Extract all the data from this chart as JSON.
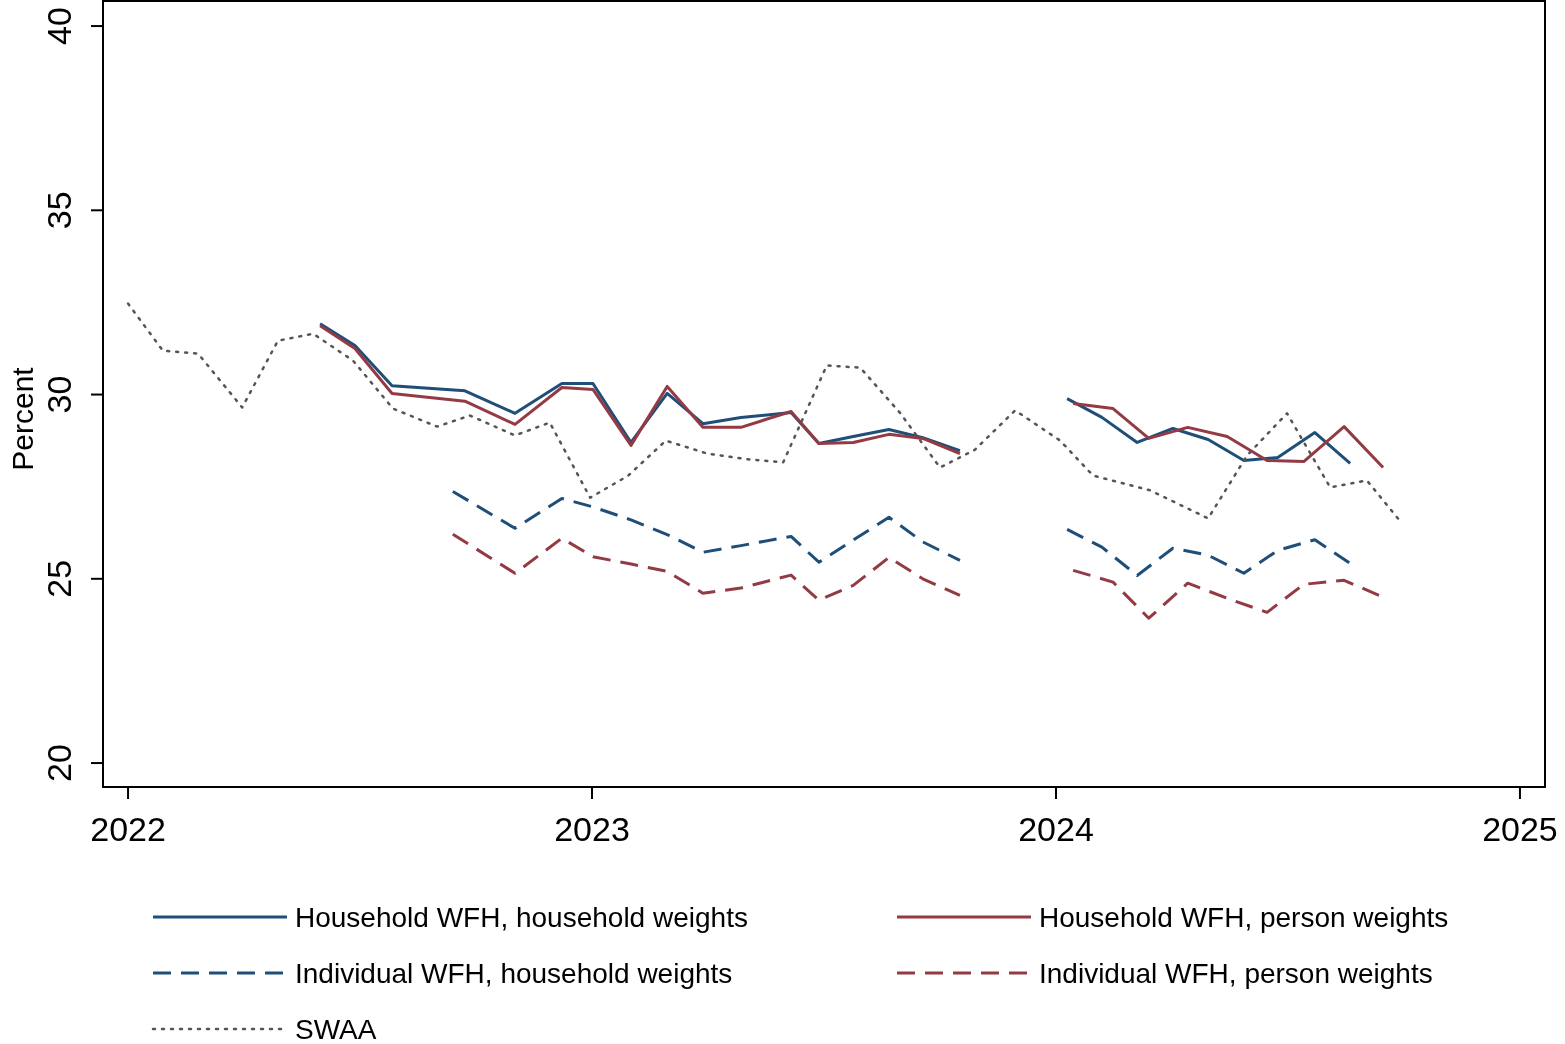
{
  "chart_data": {
    "type": "line",
    "ylabel": "Percent",
    "xlim": [
      2021.946,
      2025.054
    ],
    "ylim": [
      19.35,
      40.68
    ],
    "xticks": [
      2022,
      2023,
      2024,
      2025
    ],
    "yticks": [
      20,
      25,
      30,
      35,
      40
    ],
    "grid": false,
    "legend": "bottom",
    "series": [
      {
        "name": "Household WFH, household weights",
        "color": "#1f4e79",
        "line_style": "solid",
        "x": [
          2022.414,
          2022.489,
          2022.569,
          2022.726,
          2022.834,
          2022.935,
          2023.002,
          2023.084,
          2023.162,
          2023.239,
          2023.321,
          2023.429,
          2023.489,
          2023.563,
          2023.64,
          2023.713,
          2023.793,
          2023.9,
          2024.024,
          2024.099,
          2024.175,
          2024.252,
          2024.328,
          2024.405,
          2024.478,
          2024.558,
          2024.634
        ],
        "values": [
          31.92,
          31.33,
          30.24,
          30.1,
          29.49,
          30.3,
          30.3,
          28.7,
          30.03,
          29.21,
          29.38,
          29.51,
          28.67,
          28.86,
          29.05,
          28.83,
          28.48,
          null,
          29.89,
          29.38,
          28.7,
          29.08,
          28.78,
          28.21,
          28.29,
          28.97,
          28.13
        ]
      },
      {
        "name": "Household WFH, person weights",
        "color": "#943a45",
        "line_style": "solid",
        "x": [
          2022.414,
          2022.489,
          2022.569,
          2022.726,
          2022.834,
          2022.935,
          2023.002,
          2023.084,
          2023.162,
          2023.239,
          2023.321,
          2023.429,
          2023.489,
          2023.563,
          2023.64,
          2023.713,
          2023.793,
          2023.9,
          2024.037,
          2024.123,
          2024.2,
          2024.284,
          2024.369,
          2024.455,
          2024.534,
          2024.621,
          2024.705
        ],
        "values": [
          31.87,
          31.25,
          30.03,
          29.82,
          29.19,
          30.19,
          30.14,
          28.62,
          30.22,
          29.11,
          29.11,
          29.54,
          28.67,
          28.7,
          28.92,
          28.81,
          28.4,
          null,
          29.76,
          29.62,
          28.81,
          29.11,
          28.86,
          28.21,
          28.18,
          29.13,
          28.02
        ]
      },
      {
        "name": "Individual WFH, household weights",
        "color": "#1f4e79",
        "line_style": "dashed",
        "x": [
          2022.7,
          2022.834,
          2022.935,
          2023.002,
          2023.084,
          2023.162,
          2023.239,
          2023.321,
          2023.429,
          2023.489,
          2023.563,
          2023.64,
          2023.713,
          2023.793,
          2023.9,
          2024.024,
          2024.099,
          2024.175,
          2024.252,
          2024.328,
          2024.405,
          2024.478,
          2024.558,
          2024.634
        ],
        "values": [
          27.37,
          26.37,
          27.18,
          26.95,
          26.6,
          26.2,
          25.72,
          25.9,
          26.15,
          25.45,
          26.05,
          26.67,
          26.0,
          25.5,
          null,
          26.34,
          25.86,
          25.09,
          25.83,
          25.64,
          25.15,
          25.77,
          26.06,
          25.42
        ]
      },
      {
        "name": "Individual WFH, person weights",
        "color": "#943a45",
        "line_style": "dashed",
        "x": [
          2022.7,
          2022.834,
          2022.935,
          2023.002,
          2023.084,
          2023.162,
          2023.239,
          2023.321,
          2023.429,
          2023.489,
          2023.563,
          2023.64,
          2023.713,
          2023.793,
          2023.9,
          2024.037,
          2024.123,
          2024.2,
          2024.284,
          2024.369,
          2024.455,
          2024.534,
          2024.621,
          2024.705
        ],
        "values": [
          26.21,
          25.15,
          26.1,
          25.6,
          25.4,
          25.2,
          24.61,
          24.75,
          25.1,
          24.42,
          24.82,
          25.58,
          25.0,
          24.55,
          null,
          25.23,
          24.91,
          23.93,
          24.88,
          24.47,
          24.09,
          24.85,
          24.96,
          24.5
        ]
      },
      {
        "name": "SWAA",
        "color": "#555555",
        "line_style": "dotted",
        "x": [
          2022.0,
          2022.075,
          2022.151,
          2022.246,
          2022.323,
          2022.399,
          2022.485,
          2022.571,
          2022.666,
          2022.737,
          2022.834,
          2022.909,
          2022.996,
          2023.078,
          2023.159,
          2023.248,
          2023.33,
          2023.412,
          2023.506,
          2023.578,
          2023.664,
          2023.75,
          2023.825,
          2023.912,
          2024.009,
          2024.08,
          2024.203,
          2024.328,
          2024.412,
          2024.498,
          2024.591,
          2024.67,
          2024.746
        ],
        "values": [
          32.47,
          31.19,
          31.11,
          29.65,
          31.46,
          31.65,
          30.92,
          29.62,
          29.13,
          29.43,
          28.89,
          29.24,
          27.2,
          27.8,
          28.75,
          28.4,
          28.25,
          28.16,
          30.79,
          30.73,
          29.5,
          28.02,
          28.5,
          29.57,
          28.75,
          27.8,
          27.4,
          26.64,
          28.35,
          29.49,
          27.48,
          27.67,
          26.5
        ]
      }
    ]
  }
}
